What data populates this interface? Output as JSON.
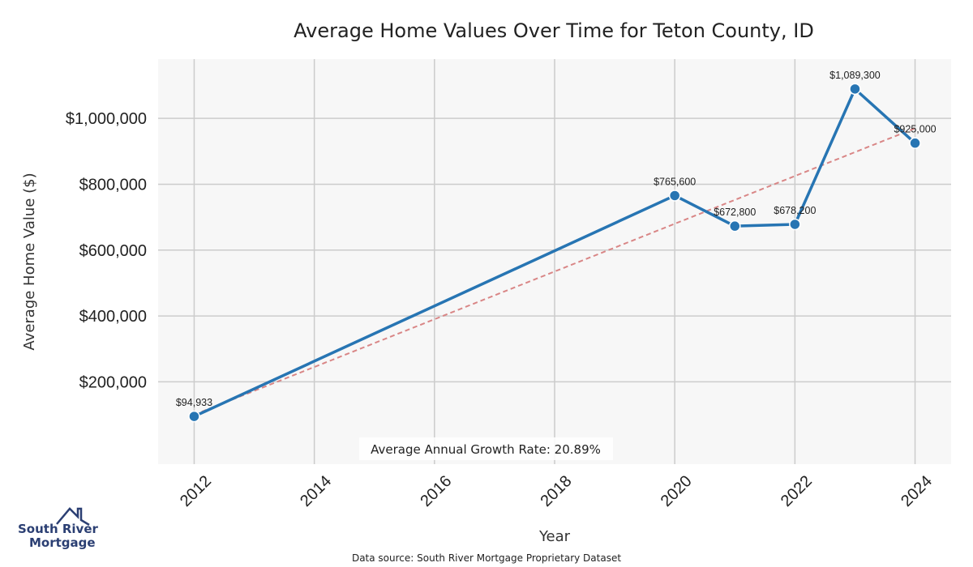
{
  "chart_data": {
    "type": "line",
    "title": "Average Home Values Over Time for Teton County, ID",
    "xlabel": "Year",
    "ylabel": "Average Home Value ($)",
    "x": [
      2012,
      2020,
      2021,
      2022,
      2023,
      2024
    ],
    "values": [
      94933,
      765600,
      672800,
      678200,
      1089300,
      925000
    ],
    "data_labels": [
      "$94,933",
      "$765,600",
      "$672,800",
      "$678,200",
      "$1,089,300",
      "$925,000"
    ],
    "x_ticks": [
      "2012",
      "2014",
      "2016",
      "2018",
      "2020",
      "2022",
      "2024"
    ],
    "y_ticks": [
      {
        "value": 200000,
        "label": "$200,000"
      },
      {
        "value": 400000,
        "label": "$400,000"
      },
      {
        "value": 600000,
        "label": "$600,000"
      },
      {
        "value": 800000,
        "label": "$800,000"
      },
      {
        "value": 1000000,
        "label": "$1,000,000"
      }
    ],
    "xlim": [
      2011.4,
      2024.6
    ],
    "ylim": [
      -50000,
      1180000
    ],
    "trendline": {
      "x": [
        2012,
        2024
      ],
      "values": [
        100000,
        970000
      ]
    },
    "annotation": "Average Annual Growth Rate: 20.89%",
    "grid": true,
    "line_color": "#2775b3",
    "trend_color": "#d98686"
  },
  "footer": {
    "source": "Data source: South River Mortgage Proprietary Dataset"
  },
  "logo": {
    "line1": "South River",
    "line2": "Mortgage"
  }
}
